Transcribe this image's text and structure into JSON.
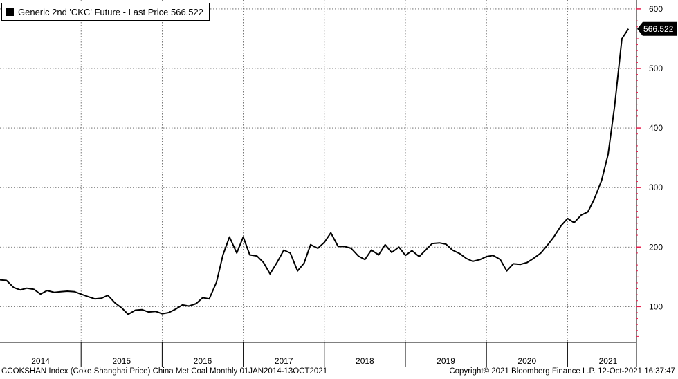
{
  "legend": {
    "label": "Generic 2nd 'CKC' Future - Last Price 566.522"
  },
  "last_price_label": "566.522",
  "footer": {
    "left": "CCOKSHAN Index (Coke Shanghai Price) China Met Coal  Monthly 01JAN2014-13OCT2021",
    "right": "Copyright© 2021 Bloomberg Finance L.P.     12-Oct-2021 16:37:47"
  },
  "colors": {
    "line": "#000000",
    "grid": "#555555",
    "axis_ticks": "#e8204f",
    "background": "#ffffff"
  },
  "chart_data": {
    "type": "line",
    "title": "",
    "xlabel": "",
    "ylabel": "",
    "x_axis_labels": [
      "2014",
      "2015",
      "2016",
      "2017",
      "2018",
      "2019",
      "2020",
      "2021"
    ],
    "y_ticks": [
      100,
      200,
      300,
      400,
      500,
      600
    ],
    "ylim": [
      40,
      615
    ],
    "xlim": [
      2014.0,
      2021.85
    ],
    "grid": true,
    "legend_placement": "top-left",
    "series": [
      {
        "name": "Generic 2nd 'CKC' Future - Last Price",
        "last_value": 566.522,
        "points": [
          [
            2014.0,
            145
          ],
          [
            2014.08,
            144
          ],
          [
            2014.17,
            132
          ],
          [
            2014.25,
            128
          ],
          [
            2014.33,
            131
          ],
          [
            2014.42,
            129
          ],
          [
            2014.5,
            121
          ],
          [
            2014.58,
            127
          ],
          [
            2014.67,
            124
          ],
          [
            2014.75,
            125
          ],
          [
            2014.83,
            126
          ],
          [
            2014.92,
            125
          ],
          [
            2015.0,
            121
          ],
          [
            2015.08,
            117
          ],
          [
            2015.17,
            113
          ],
          [
            2015.25,
            114
          ],
          [
            2015.33,
            119
          ],
          [
            2015.42,
            106
          ],
          [
            2015.5,
            98
          ],
          [
            2015.58,
            87
          ],
          [
            2015.67,
            94
          ],
          [
            2015.75,
            95
          ],
          [
            2015.83,
            91
          ],
          [
            2015.92,
            92
          ],
          [
            2016.0,
            88
          ],
          [
            2016.08,
            90
          ],
          [
            2016.17,
            96
          ],
          [
            2016.25,
            103
          ],
          [
            2016.33,
            101
          ],
          [
            2016.42,
            105
          ],
          [
            2016.5,
            115
          ],
          [
            2016.58,
            113
          ],
          [
            2016.67,
            141
          ],
          [
            2016.75,
            187
          ],
          [
            2016.83,
            217
          ],
          [
            2016.92,
            190
          ],
          [
            2017.0,
            217
          ],
          [
            2017.08,
            187
          ],
          [
            2017.17,
            185
          ],
          [
            2017.25,
            174
          ],
          [
            2017.33,
            155
          ],
          [
            2017.42,
            175
          ],
          [
            2017.5,
            195
          ],
          [
            2017.58,
            190
          ],
          [
            2017.67,
            160
          ],
          [
            2017.75,
            173
          ],
          [
            2017.83,
            204
          ],
          [
            2017.92,
            198
          ],
          [
            2018.0,
            208
          ],
          [
            2018.08,
            224
          ],
          [
            2018.17,
            201
          ],
          [
            2018.25,
            201
          ],
          [
            2018.33,
            198
          ],
          [
            2018.42,
            185
          ],
          [
            2018.5,
            179
          ],
          [
            2018.58,
            195
          ],
          [
            2018.67,
            187
          ],
          [
            2018.75,
            204
          ],
          [
            2018.83,
            191
          ],
          [
            2018.92,
            200
          ],
          [
            2019.0,
            186
          ],
          [
            2019.08,
            194
          ],
          [
            2019.17,
            184
          ],
          [
            2019.25,
            195
          ],
          [
            2019.33,
            206
          ],
          [
            2019.42,
            207
          ],
          [
            2019.5,
            205
          ],
          [
            2019.58,
            195
          ],
          [
            2019.67,
            189
          ],
          [
            2019.75,
            181
          ],
          [
            2019.83,
            176
          ],
          [
            2019.92,
            179
          ],
          [
            2020.0,
            184
          ],
          [
            2020.08,
            186
          ],
          [
            2020.17,
            179
          ],
          [
            2020.25,
            160
          ],
          [
            2020.33,
            172
          ],
          [
            2020.42,
            171
          ],
          [
            2020.5,
            174
          ],
          [
            2020.58,
            181
          ],
          [
            2020.67,
            190
          ],
          [
            2020.75,
            203
          ],
          [
            2020.83,
            217
          ],
          [
            2020.92,
            236
          ],
          [
            2021.0,
            248
          ],
          [
            2021.08,
            241
          ],
          [
            2021.17,
            254
          ],
          [
            2021.25,
            259
          ],
          [
            2021.33,
            281
          ],
          [
            2021.42,
            312
          ],
          [
            2021.5,
            356
          ],
          [
            2021.58,
            437
          ],
          [
            2021.67,
            550
          ],
          [
            2021.75,
            566.522
          ]
        ]
      }
    ]
  }
}
